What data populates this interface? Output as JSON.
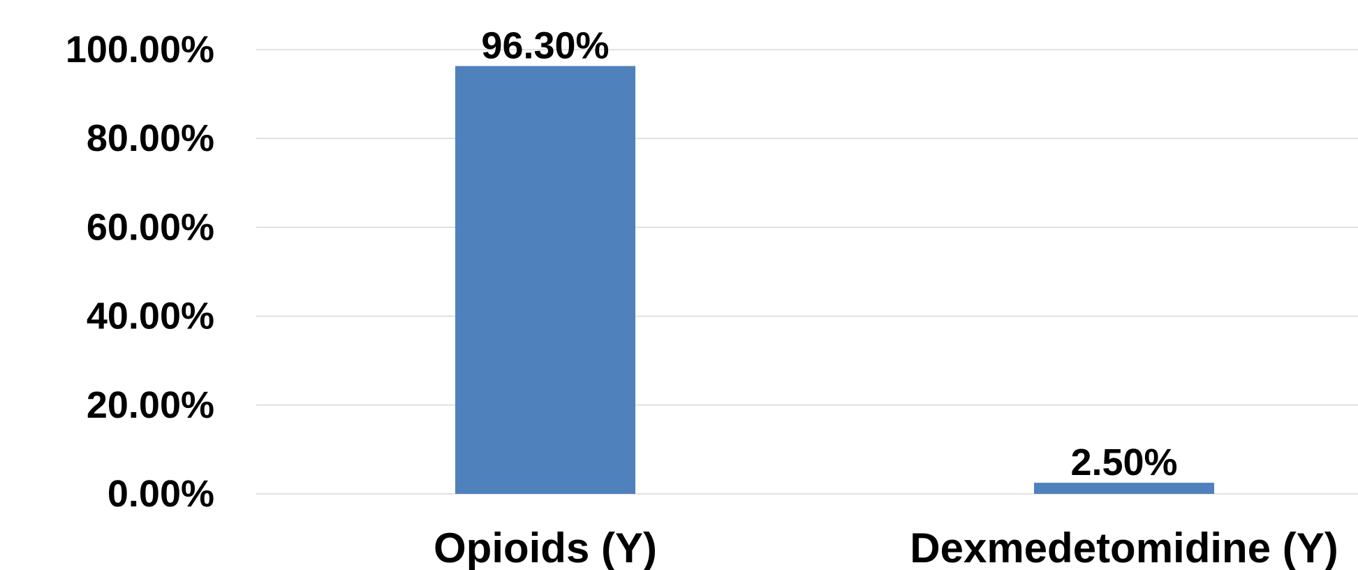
{
  "chart_data": {
    "type": "bar",
    "categories": [
      "Opioids (Y)",
      "Dexmedetomidine (Y)"
    ],
    "values": [
      96.3,
      2.5
    ],
    "data_labels": [
      "96.30%",
      "2.50%"
    ],
    "y_ticks": [
      0,
      20,
      40,
      60,
      80,
      100
    ],
    "y_tick_labels": [
      "0.00%",
      "20.00%",
      "40.00%",
      "60.00%",
      "80.00%",
      "100.00%"
    ],
    "ylim": [
      0,
      100
    ],
    "grid": true,
    "legend": "none",
    "bar_color": "#4F81BD",
    "grid_color": "#D9D9D9",
    "title": "",
    "xlabel": "",
    "ylabel": ""
  }
}
